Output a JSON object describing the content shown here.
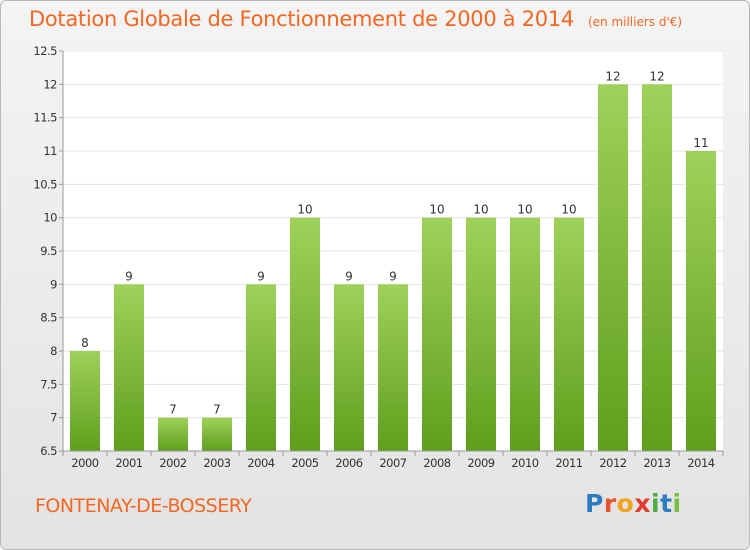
{
  "title": "Dotation Globale de Fonctionnement de 2000 à 2014",
  "unit": "(en milliers d'€)",
  "commune": "FONTENAY-DE-BOSSERY",
  "brand": {
    "letters": [
      {
        "ch": "P",
        "color": "#2e7bbf"
      },
      {
        "ch": "r",
        "color": "#e9532b"
      },
      {
        "ch": "o",
        "color": "#f2a31b"
      },
      {
        "ch": "x",
        "color": "#e33b2e"
      },
      {
        "ch": "i",
        "color": "#4da840"
      },
      {
        "ch": "t",
        "color": "#2e7bbf"
      },
      {
        "ch": "i",
        "color": "#7abf3c"
      }
    ]
  },
  "colors": {
    "accent": "#f26722",
    "bar_top": "#9fd15a",
    "bar_bottom": "#5f9f1c",
    "axis": "#999999",
    "grid": "#e6e6e6"
  },
  "chart_data": {
    "type": "bar",
    "title": "Dotation Globale de Fonctionnement de 2000 à 2014",
    "subtitle": "(en milliers d'€)",
    "categories": [
      "2000",
      "2001",
      "2002",
      "2003",
      "2004",
      "2005",
      "2006",
      "2007",
      "2008",
      "2009",
      "2010",
      "2011",
      "2012",
      "2013",
      "2014"
    ],
    "values": [
      8,
      9,
      7,
      7,
      9,
      10,
      9,
      9,
      10,
      10,
      10,
      10,
      12,
      12,
      11
    ],
    "ylim": [
      6.5,
      12.5
    ],
    "yticks": [
      "6.5",
      "7",
      "7.5",
      "8",
      "8.5",
      "9",
      "9.5",
      "10",
      "10.5",
      "11",
      "11.5",
      "12",
      "12.5"
    ],
    "grid": true,
    "xlabel": "",
    "ylabel": ""
  }
}
